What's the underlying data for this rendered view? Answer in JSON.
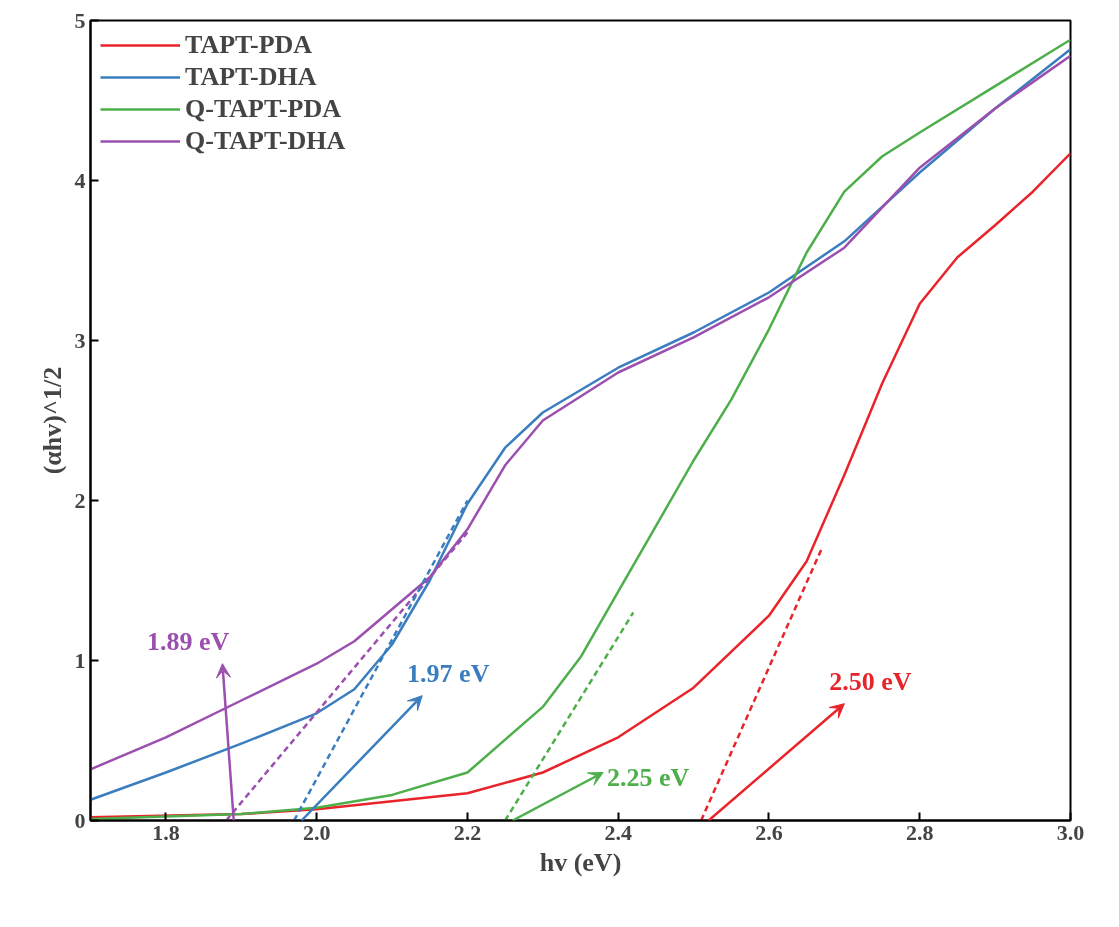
{
  "chart_data": {
    "type": "line",
    "xlabel": "hv (eV)",
    "ylabel": "(αhv)^1/2",
    "xlim": [
      1.7,
      3.0
    ],
    "ylim": [
      0,
      5
    ],
    "xticks": [
      1.8,
      {
        "value": 2,
        "label": "2.0"
      },
      2.2,
      2.4,
      2.6,
      2.8,
      {
        "value": 3,
        "label": "3.0"
      }
    ],
    "yticks": [
      0,
      1,
      2,
      3,
      4,
      5
    ],
    "grid": false,
    "legend": "top left",
    "line_style": "solid",
    "series": [
      {
        "name": "TAPT-PDA",
        "color": "#e8242a",
        "x": [
          1.7,
          1.9,
          2.0,
          2.2,
          2.3,
          2.4,
          2.5,
          2.6,
          2.65,
          2.7,
          2.75,
          2.8,
          2.85,
          2.9,
          2.95,
          3.0
        ],
        "values": [
          0.02,
          0.04,
          0.07,
          0.17,
          0.3,
          0.52,
          0.83,
          1.28,
          1.62,
          2.16,
          2.73,
          3.23,
          3.52,
          3.72,
          3.93,
          4.17
        ]
      },
      {
        "name": "TAPT-DHA",
        "color": "#3a7ebf",
        "x": [
          1.7,
          1.8,
          1.9,
          2.0,
          2.05,
          2.1,
          2.15,
          2.2,
          2.25,
          2.3,
          2.4,
          2.5,
          2.6,
          2.7,
          2.8,
          2.9,
          3.0
        ],
        "values": [
          0.13,
          0.3,
          0.48,
          0.67,
          0.82,
          1.1,
          1.5,
          1.98,
          2.33,
          2.55,
          2.83,
          3.05,
          3.3,
          3.62,
          4.05,
          4.45,
          4.82
        ]
      },
      {
        "name": "Q-TAPT-PDA",
        "color": "#4daf4a",
        "x": [
          1.7,
          1.9,
          2.0,
          2.1,
          2.2,
          2.3,
          2.35,
          2.4,
          2.45,
          2.5,
          2.55,
          2.6,
          2.65,
          2.7,
          2.75,
          2.8,
          2.9,
          3.0
        ],
        "values": [
          0.01,
          0.04,
          0.08,
          0.16,
          0.3,
          0.71,
          1.02,
          1.43,
          1.84,
          2.25,
          2.63,
          3.07,
          3.55,
          3.93,
          4.15,
          4.3,
          4.59,
          4.88
        ]
      },
      {
        "name": "Q-TAPT-DHA",
        "color": "#9b4fae",
        "x": [
          1.7,
          1.8,
          1.9,
          2.0,
          2.05,
          2.1,
          2.15,
          2.2,
          2.25,
          2.3,
          2.4,
          2.5,
          2.6,
          2.7,
          2.8,
          2.9,
          3.0
        ],
        "values": [
          0.32,
          0.52,
          0.75,
          0.98,
          1.12,
          1.32,
          1.52,
          1.82,
          2.22,
          2.5,
          2.8,
          3.02,
          3.27,
          3.58,
          4.08,
          4.45,
          4.78
        ]
      },
      {
        "color": "#9b4fae",
        "line_style": "dashed",
        "x": [
          1.88,
          2.2
        ],
        "values": [
          0,
          1.8
        ]
      },
      {
        "color": "#3a7ebf",
        "line_style": "dashed",
        "x": [
          1.97,
          2.2
        ],
        "values": [
          0,
          2.0
        ]
      },
      {
        "color": "#4daf4a",
        "line_style": "dashed",
        "x": [
          2.25,
          2.42
        ],
        "values": [
          0,
          1.3
        ]
      },
      {
        "color": "#e8242a",
        "line_style": "dashed",
        "x": [
          2.51,
          2.67
        ],
        "values": [
          0,
          1.7
        ]
      }
    ],
    "annotations": [
      "1.89 eV",
      "1.97 eV",
      "2.25 eV",
      "2.50 eV"
    ]
  }
}
